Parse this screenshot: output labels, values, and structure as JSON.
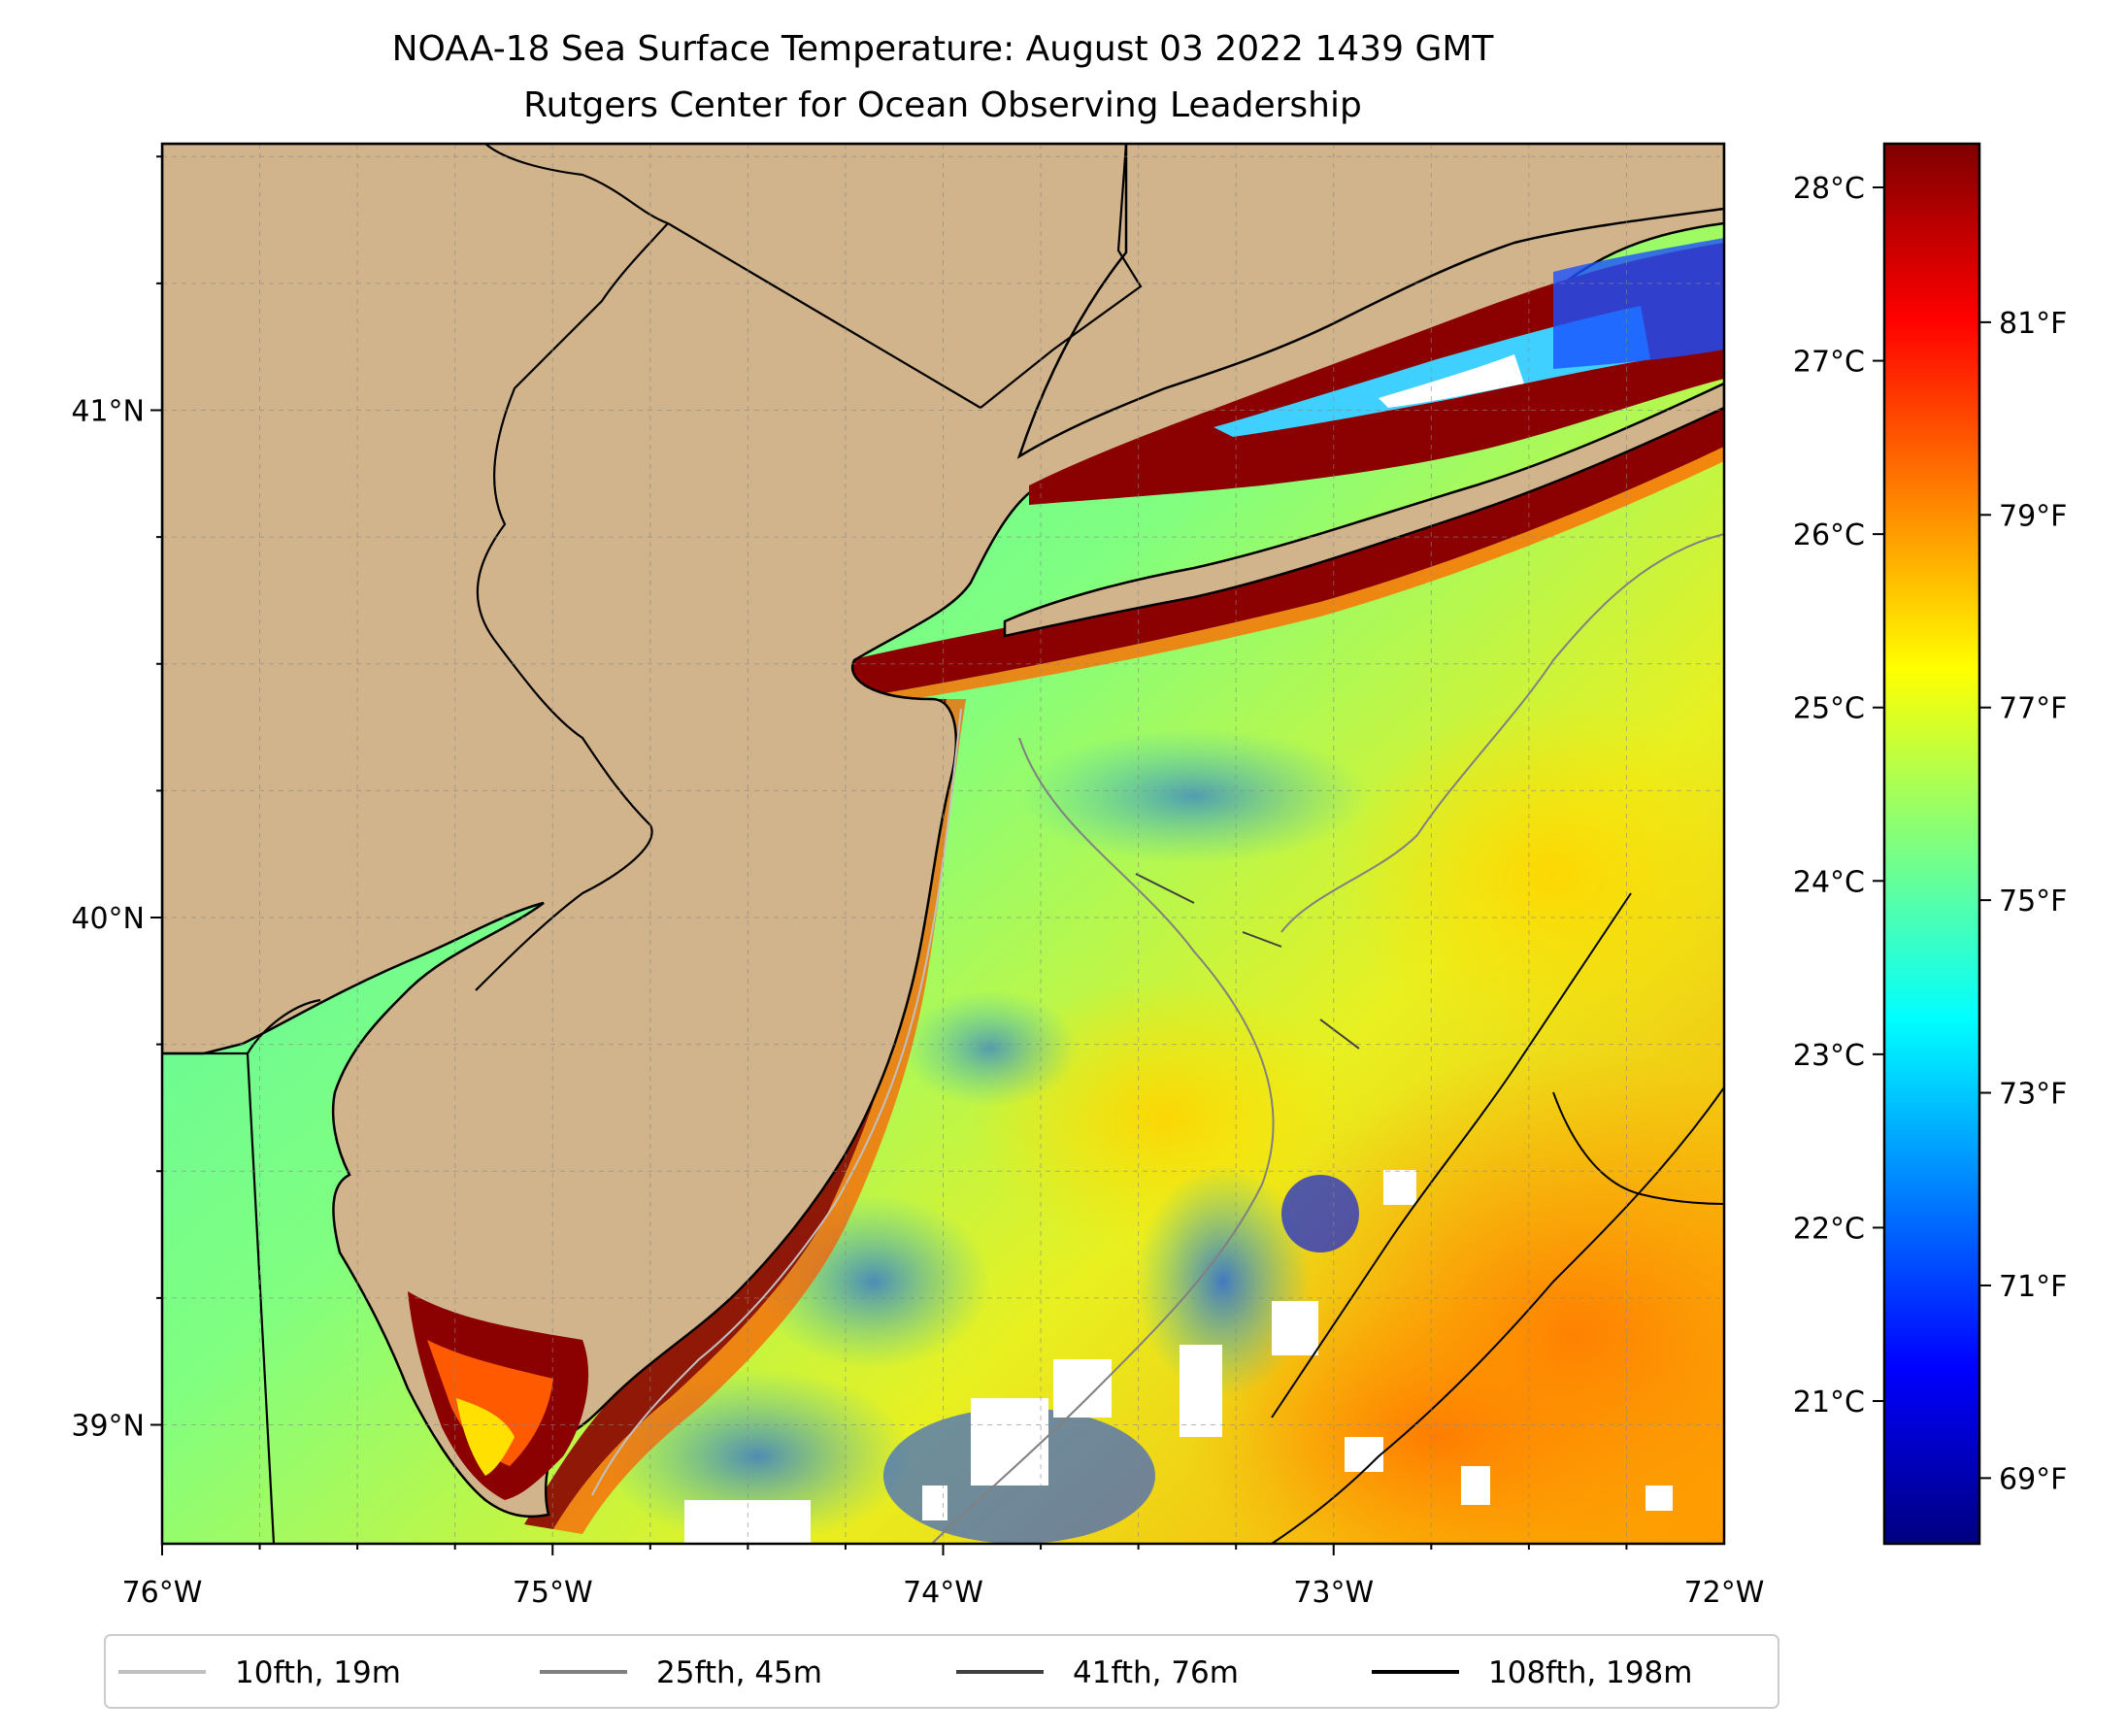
{
  "title": {
    "line1": "NOAA-18 Sea Surface Temperature: August 03 2022 1439 GMT",
    "line2": "Rutgers Center for Ocean Observing Leadership"
  },
  "map": {
    "land_color": "#D2B48C",
    "x_ticks": [
      {
        "value": -76,
        "label": "76°W"
      },
      {
        "value": -75,
        "label": "75°W"
      },
      {
        "value": -74,
        "label": "74°W"
      },
      {
        "value": -73,
        "label": "73°W"
      },
      {
        "value": -72,
        "label": "72°W"
      }
    ],
    "y_ticks": [
      {
        "value": 41,
        "label": "41°N"
      },
      {
        "value": 40,
        "label": "40°N"
      },
      {
        "value": 39,
        "label": "39°N"
      }
    ]
  },
  "colorbar": {
    "stops": [
      "#00007F",
      "#0000FF",
      "#007FFF",
      "#00FFFF",
      "#7FFF7F",
      "#FFFF00",
      "#FF7F00",
      "#FF0000",
      "#7F0000"
    ],
    "celsius_ticks": [
      {
        "value": 28,
        "label": "28°C"
      },
      {
        "value": 27,
        "label": "27°C"
      },
      {
        "value": 26,
        "label": "26°C"
      },
      {
        "value": 25,
        "label": "25°C"
      },
      {
        "value": 24,
        "label": "24°C"
      },
      {
        "value": 23,
        "label": "23°C"
      },
      {
        "value": 22,
        "label": "22°C"
      },
      {
        "value": 21,
        "label": "21°C"
      }
    ],
    "fahrenheit_ticks": [
      {
        "value": 81,
        "label": "81°F"
      },
      {
        "value": 79,
        "label": "79°F"
      },
      {
        "value": 77,
        "label": "77°F"
      },
      {
        "value": 75,
        "label": "75°F"
      },
      {
        "value": 73,
        "label": "73°F"
      },
      {
        "value": 71,
        "label": "71°F"
      },
      {
        "value": 69,
        "label": "69°F"
      }
    ]
  },
  "legend": [
    {
      "label": "10fth, 19m",
      "color": "#C0C0C0"
    },
    {
      "label": "25fth, 45m",
      "color": "#808080"
    },
    {
      "label": "41fth, 76m",
      "color": "#404040"
    },
    {
      "label": "108fth, 198m",
      "color": "#000000"
    }
  ]
}
